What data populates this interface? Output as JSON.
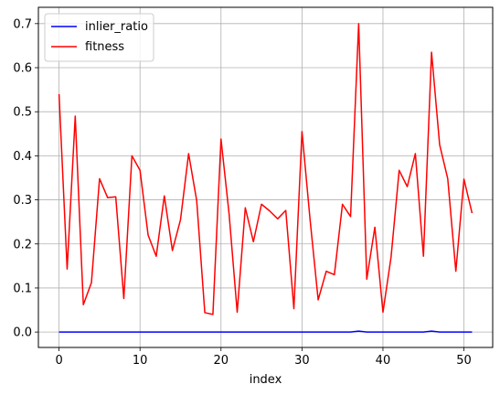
{
  "chart_data": {
    "type": "line",
    "title": "",
    "xlabel": "index",
    "ylabel": "",
    "xlim": [
      -2.55,
      53.55
    ],
    "ylim": [
      -0.035,
      0.737
    ],
    "xticks": [
      0,
      10,
      20,
      30,
      40,
      50
    ],
    "yticks": [
      0.0,
      0.1,
      0.2,
      0.3,
      0.4,
      0.5,
      0.6,
      0.7
    ],
    "ytick_labels": [
      "0.0",
      "0.1",
      "0.2",
      "0.3",
      "0.4",
      "0.5",
      "0.6",
      "0.7"
    ],
    "grid": true,
    "legend": "upper-left",
    "x": [
      0,
      1,
      2,
      3,
      4,
      5,
      6,
      7,
      8,
      9,
      10,
      11,
      12,
      13,
      14,
      15,
      16,
      17,
      18,
      19,
      20,
      21,
      22,
      23,
      24,
      25,
      26,
      27,
      28,
      29,
      30,
      31,
      32,
      33,
      34,
      35,
      36,
      37,
      38,
      39,
      40,
      41,
      42,
      43,
      44,
      45,
      46,
      47,
      48,
      49,
      50,
      51
    ],
    "series": [
      {
        "name": "inlier_ratio",
        "color": "#0000ff",
        "values": [
          0,
          0,
          0,
          0,
          0,
          0,
          0,
          0,
          0,
          0,
          0,
          0,
          0,
          0,
          0,
          0,
          0,
          0,
          0,
          0,
          0,
          0,
          0,
          0,
          0,
          0,
          0,
          0,
          0,
          0,
          0,
          0,
          0,
          0,
          0,
          0,
          0,
          0.002,
          0,
          0,
          0,
          0,
          0,
          0,
          0,
          0,
          0.002,
          0,
          0,
          0,
          0,
          0
        ]
      },
      {
        "name": "fitness",
        "color": "#ff0000",
        "values": [
          0.54,
          0.143,
          0.49,
          0.062,
          0.112,
          0.348,
          0.305,
          0.307,
          0.076,
          0.4,
          0.367,
          0.22,
          0.172,
          0.309,
          0.185,
          0.255,
          0.405,
          0.298,
          0.044,
          0.04,
          0.438,
          0.268,
          0.045,
          0.282,
          0.205,
          0.29,
          0.275,
          0.257,
          0.276,
          0.053,
          0.455,
          0.255,
          0.073,
          0.138,
          0.13,
          0.29,
          0.262,
          0.7,
          0.12,
          0.238,
          0.045,
          0.17,
          0.367,
          0.33,
          0.405,
          0.172,
          0.635,
          0.425,
          0.348,
          0.138,
          0.347,
          0.27
        ]
      }
    ]
  }
}
